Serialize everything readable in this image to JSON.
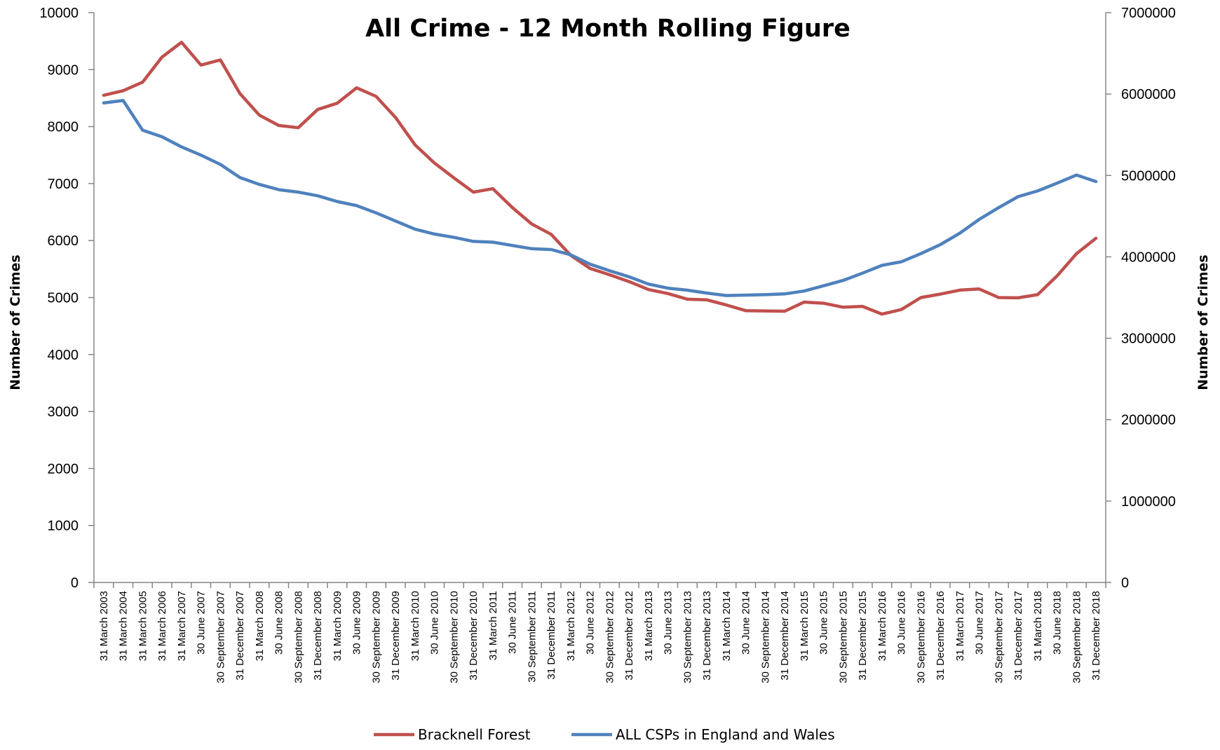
{
  "chart_data": {
    "type": "line",
    "title": "All Crime - 12 Month Rolling Figure",
    "ylabel": "Number of Crimes",
    "y2label": "Number of Crimes",
    "ylim": [
      0,
      10000
    ],
    "y2lim": [
      0,
      7000000
    ],
    "yticks": [
      0,
      1000,
      2000,
      3000,
      4000,
      5000,
      6000,
      7000,
      8000,
      9000,
      10000
    ],
    "y2ticks": [
      0,
      1000000,
      2000000,
      3000000,
      4000000,
      5000000,
      6000000,
      7000000
    ],
    "legend_position": "bottom",
    "grid": false,
    "categories": [
      "31 March 2003",
      "31 March 2004",
      "31 March 2005",
      "31 March 2006",
      "31 March 2007",
      "30 June 2007",
      "30 September 2007",
      "31 December 2007",
      "31 March 2008",
      "30 June 2008",
      "30 September 2008",
      "31 December 2008",
      "31 March 2009",
      "30 June 2009",
      "30 September 2009",
      "31 December 2009",
      "31 March 2010",
      "30 June 2010",
      "30 September 2010",
      "31 December 2010",
      "31 March 2011",
      "30 June 2011",
      "30 September 2011",
      "31 December 2011",
      "31 March 2012",
      "30 June 2012",
      "30 September 2012",
      "31 December 2012",
      "31 March 2013",
      "30 June 2013",
      "30 September 2013",
      "31 December 2013",
      "31 March 2014",
      "30 June 2014",
      "30 September 2014",
      "31 December 2014",
      "31 March 2015",
      "30 June 2015",
      "30 September 2015",
      "31 December 2015",
      "31 March 2016",
      "30 June 2016",
      "30 September 2016",
      "31 December 2016",
      "31 March 2017",
      "30 June 2017",
      "30 September 2017",
      "31 December 2017",
      "31 March 2018",
      "30 June 2018",
      "30 September 2018",
      "31 December 2018"
    ],
    "series": [
      {
        "name": "Bracknell Forest",
        "axis": "left",
        "color": "#c0504d",
        "values": [
          8550,
          8630,
          8780,
          9220,
          9480,
          9080,
          9170,
          8580,
          8200,
          8020,
          7980,
          8300,
          8410,
          8680,
          8530,
          8160,
          7680,
          7360,
          7100,
          6850,
          6910,
          6580,
          6290,
          6110,
          5740,
          5510,
          5400,
          5280,
          5140,
          5070,
          4970,
          4960,
          4870,
          4770,
          4765,
          4760,
          4920,
          4900,
          4830,
          4845,
          4710,
          4790,
          5000,
          5060,
          5130,
          5150,
          5000,
          4995,
          5050,
          5380,
          5770,
          6040
        ]
      },
      {
        "name": "ALL CSPs in England and Wales",
        "axis": "right",
        "color": "#4f81bd",
        "values": [
          5890000,
          5920000,
          5555000,
          5475000,
          5350000,
          5250000,
          5135000,
          4975000,
          4890000,
          4825000,
          4795000,
          4750000,
          4680000,
          4630000,
          4540000,
          4440000,
          4340000,
          4280000,
          4240000,
          4190000,
          4180000,
          4140000,
          4100000,
          4090000,
          4025000,
          3910000,
          3830000,
          3755000,
          3665000,
          3615000,
          3590000,
          3555000,
          3525000,
          3530000,
          3535000,
          3545000,
          3580000,
          3645000,
          3710000,
          3800000,
          3895000,
          3940000,
          4040000,
          4150000,
          4290000,
          4460000,
          4605000,
          4740000,
          4810000,
          4905000,
          5005000,
          4925000
        ]
      }
    ]
  }
}
